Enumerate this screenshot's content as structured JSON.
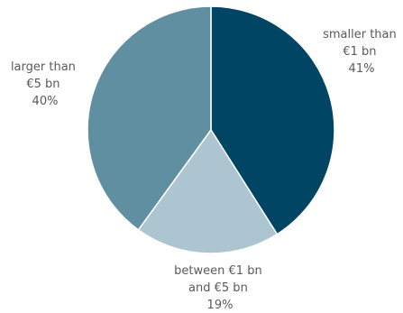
{
  "chart_data": {
    "type": "pie",
    "title": "",
    "slices": [
      {
        "label_lines": [
          "smaller than",
          "€1 bn"
        ],
        "percent_label": "41%",
        "value": 41,
        "color": "#004664"
      },
      {
        "label_lines": [
          "between €1 bn",
          "and  €5 bn"
        ],
        "percent_label": "19%",
        "value": 19,
        "color": "#adc5d0"
      },
      {
        "label_lines": [
          "larger than",
          "€5 bn"
        ],
        "percent_label": "40%",
        "value": 40,
        "color": "#618fa2"
      }
    ],
    "start_angle_deg": 0,
    "direction": "clockwise",
    "legend": "none"
  }
}
